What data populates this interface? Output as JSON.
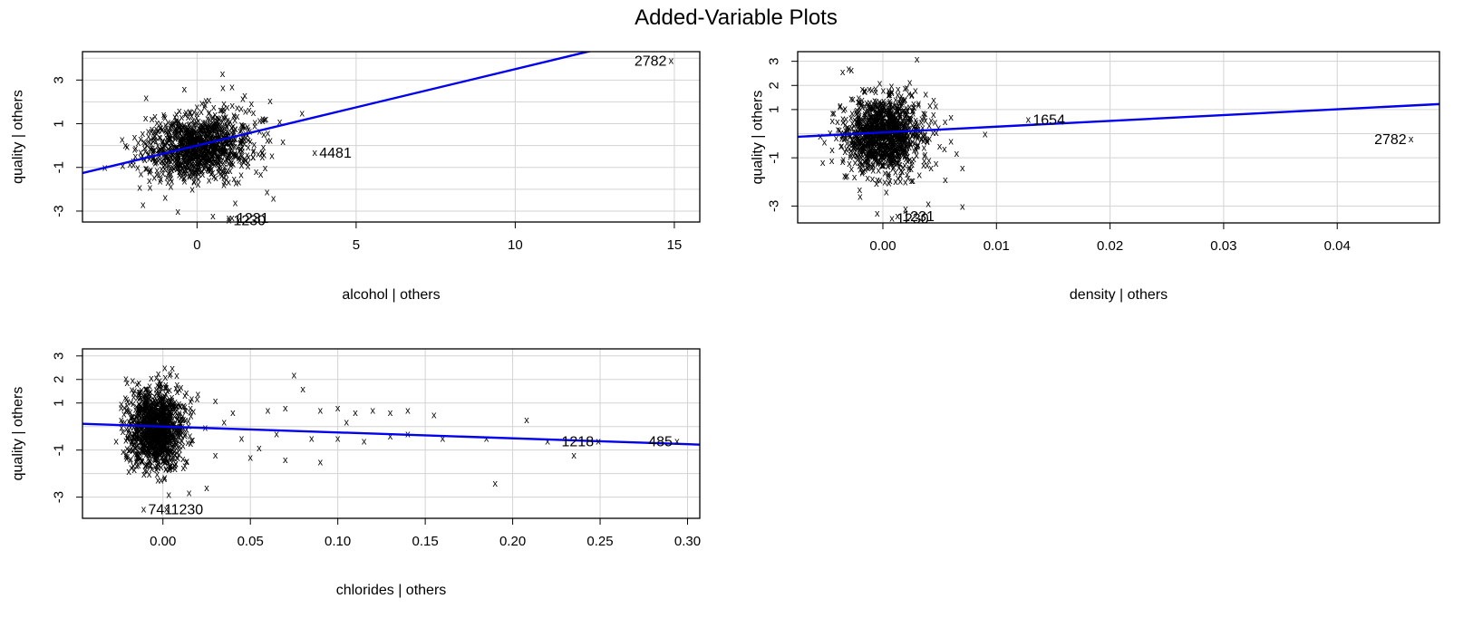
{
  "title": "Added-Variable Plots",
  "colors": {
    "fit_line": "#0000ee",
    "grid": "#d3d3d3",
    "points": "#000000"
  },
  "chart_data": [
    {
      "type": "scatter",
      "name": "alcohol",
      "xlabel": "alcohol | others",
      "ylabel": "quality  | others",
      "xlim": [
        -3.6,
        15.8
      ],
      "ylim": [
        -3.5,
        4.3
      ],
      "xticks": [
        0,
        5,
        10,
        15
      ],
      "yticks": [
        -3,
        -1,
        1,
        3
      ],
      "grid": true,
      "fit_line": {
        "slope": 0.35,
        "intercept": 0.0
      },
      "cluster": {
        "cx": 0,
        "cy": 0,
        "sx": 0.85,
        "sy": 0.75,
        "n": 1100
      },
      "points": [
        {
          "x": -1.5,
          "y": -1.6
        },
        {
          "x": -1.8,
          "y": -1.9
        },
        {
          "x": -1.7,
          "y": -2.7
        },
        {
          "x": -1.6,
          "y": 2.2
        },
        {
          "x": -2.9,
          "y": -1.0
        },
        {
          "x": -0.4,
          "y": 2.6
        },
        {
          "x": 0.8,
          "y": 3.3
        },
        {
          "x": 1.1,
          "y": 2.7
        },
        {
          "x": 2.2,
          "y": -2.1
        },
        {
          "x": 2.4,
          "y": -2.4
        },
        {
          "x": 2.6,
          "y": 1.1
        },
        {
          "x": 2.7,
          "y": 0.2
        },
        {
          "x": 3.3,
          "y": 1.5
        },
        {
          "x": 1.2,
          "y": -2.6
        },
        {
          "x": -0.6,
          "y": -3.0
        },
        {
          "x": 0.5,
          "y": -3.2
        },
        {
          "x": 1.0,
          "y": -3.3
        },
        {
          "x": 1.3,
          "y": -3.4
        },
        {
          "x": 1.5,
          "y": 2.3
        },
        {
          "x": 2.0,
          "y": -1.3
        }
      ],
      "labeled_points": [
        {
          "x": 14.9,
          "y": 3.9,
          "label": "2782",
          "side": "left"
        },
        {
          "x": 3.7,
          "y": -0.3,
          "label": "4481",
          "side": "right"
        },
        {
          "x": 1.0,
          "y": -3.4,
          "label": "1230",
          "side": "right"
        },
        {
          "x": 1.1,
          "y": -3.3,
          "label": "1231",
          "side": "right"
        }
      ]
    },
    {
      "type": "scatter",
      "name": "density",
      "xlabel": "density | others",
      "ylabel": "quality  | others",
      "xlim": [
        -0.0075,
        0.049
      ],
      "ylim": [
        -3.7,
        3.4
      ],
      "xticks": [
        0.0,
        0.01,
        0.02,
        0.03,
        0.04
      ],
      "xtick_labels": [
        "0.00",
        "0.01",
        "0.02",
        "0.03",
        "0.04"
      ],
      "yticks": [
        -3,
        -1,
        1,
        2,
        3
      ],
      "yticks_minor_grid": [
        -2,
        0
      ],
      "grid": true,
      "fit_line": {
        "slope": 24.0,
        "intercept": 0.05
      },
      "cluster": {
        "cx": 0,
        "cy": 0,
        "sx": 0.0017,
        "sy": 0.8,
        "n": 1200
      },
      "points": [
        {
          "x": -0.0055,
          "y": -0.1
        },
        {
          "x": -0.004,
          "y": 0.5
        },
        {
          "x": -0.003,
          "y": 2.7
        },
        {
          "x": 0.003,
          "y": 3.1
        },
        {
          "x": 0.005,
          "y": -0.5
        },
        {
          "x": 0.006,
          "y": -0.3
        },
        {
          "x": 0.0065,
          "y": -0.8
        },
        {
          "x": 0.007,
          "y": -1.4
        },
        {
          "x": 0.007,
          "y": -3.0
        },
        {
          "x": 0.009,
          "y": 0.0
        },
        {
          "x": 0.004,
          "y": -2.9
        },
        {
          "x": 0.0055,
          "y": -1.9
        },
        {
          "x": 0.002,
          "y": -3.1
        },
        {
          "x": -0.002,
          "y": -2.6
        },
        {
          "x": 0.006,
          "y": 0.7
        },
        {
          "x": -0.0045,
          "y": -1.1
        }
      ],
      "labeled_points": [
        {
          "x": 0.0465,
          "y": -0.2,
          "label": "2782",
          "side": "left"
        },
        {
          "x": 0.0128,
          "y": 0.6,
          "label": "1654",
          "side": "right"
        },
        {
          "x": 0.0008,
          "y": -3.5,
          "label": "1230",
          "side": "right"
        },
        {
          "x": 0.0013,
          "y": -3.4,
          "label": "1231",
          "side": "right"
        }
      ]
    },
    {
      "type": "scatter",
      "name": "chlorides",
      "xlabel": "chlorides | others",
      "ylabel": "quality  | others",
      "xlim": [
        -0.046,
        0.307
      ],
      "ylim": [
        -3.9,
        3.3
      ],
      "xticks": [
        0.0,
        0.05,
        0.1,
        0.15,
        0.2,
        0.25,
        0.3
      ],
      "xtick_labels": [
        "0.00",
        "0.05",
        "0.10",
        "0.15",
        "0.20",
        "0.25",
        "0.30"
      ],
      "yticks": [
        -3,
        -1,
        1,
        2,
        3
      ],
      "yticks_minor_grid": [
        -2,
        0
      ],
      "grid": true,
      "fit_line": {
        "slope": -2.5,
        "intercept": 0.0
      },
      "cluster": {
        "cx": -0.004,
        "cy": 0,
        "sx": 0.008,
        "sy": 0.85,
        "n": 1200
      },
      "points": [
        {
          "x": 0.02,
          "y": 1.4
        },
        {
          "x": 0.03,
          "y": 1.1
        },
        {
          "x": 0.04,
          "y": 0.6
        },
        {
          "x": 0.06,
          "y": 0.7
        },
        {
          "x": 0.07,
          "y": 0.8
        },
        {
          "x": 0.075,
          "y": 2.2
        },
        {
          "x": 0.08,
          "y": 1.6
        },
        {
          "x": 0.09,
          "y": 0.7
        },
        {
          "x": 0.1,
          "y": 0.8
        },
        {
          "x": 0.11,
          "y": 0.6
        },
        {
          "x": 0.12,
          "y": 0.7
        },
        {
          "x": 0.13,
          "y": 0.6
        },
        {
          "x": 0.14,
          "y": 0.7
        },
        {
          "x": 0.155,
          "y": 0.5
        },
        {
          "x": 0.03,
          "y": -1.2
        },
        {
          "x": 0.05,
          "y": -1.3
        },
        {
          "x": 0.07,
          "y": -1.4
        },
        {
          "x": 0.09,
          "y": -1.5
        },
        {
          "x": 0.045,
          "y": -0.5
        },
        {
          "x": 0.065,
          "y": -0.3
        },
        {
          "x": 0.085,
          "y": -0.5
        },
        {
          "x": 0.1,
          "y": -0.5
        },
        {
          "x": 0.115,
          "y": -0.6
        },
        {
          "x": 0.13,
          "y": -0.4
        },
        {
          "x": 0.14,
          "y": -0.3
        },
        {
          "x": 0.16,
          "y": -0.5
        },
        {
          "x": 0.185,
          "y": -0.5
        },
        {
          "x": 0.19,
          "y": -2.4
        },
        {
          "x": 0.208,
          "y": 0.3
        },
        {
          "x": 0.22,
          "y": -0.6
        },
        {
          "x": 0.235,
          "y": -1.2
        },
        {
          "x": 0.025,
          "y": -2.6
        },
        {
          "x": 0.015,
          "y": -2.8
        },
        {
          "x": 0.035,
          "y": 0.2
        },
        {
          "x": 0.055,
          "y": -0.9
        },
        {
          "x": 0.105,
          "y": 0.2
        }
      ],
      "labeled_points": [
        {
          "x": 0.249,
          "y": -0.6,
          "label": "1218",
          "side": "left"
        },
        {
          "x": 0.294,
          "y": -0.6,
          "label": "485",
          "side": "left"
        },
        {
          "x": -0.011,
          "y": -3.5,
          "label": "741",
          "side": "right"
        },
        {
          "x": 0.002,
          "y": -3.5,
          "label": "1230",
          "side": "right"
        }
      ]
    }
  ]
}
